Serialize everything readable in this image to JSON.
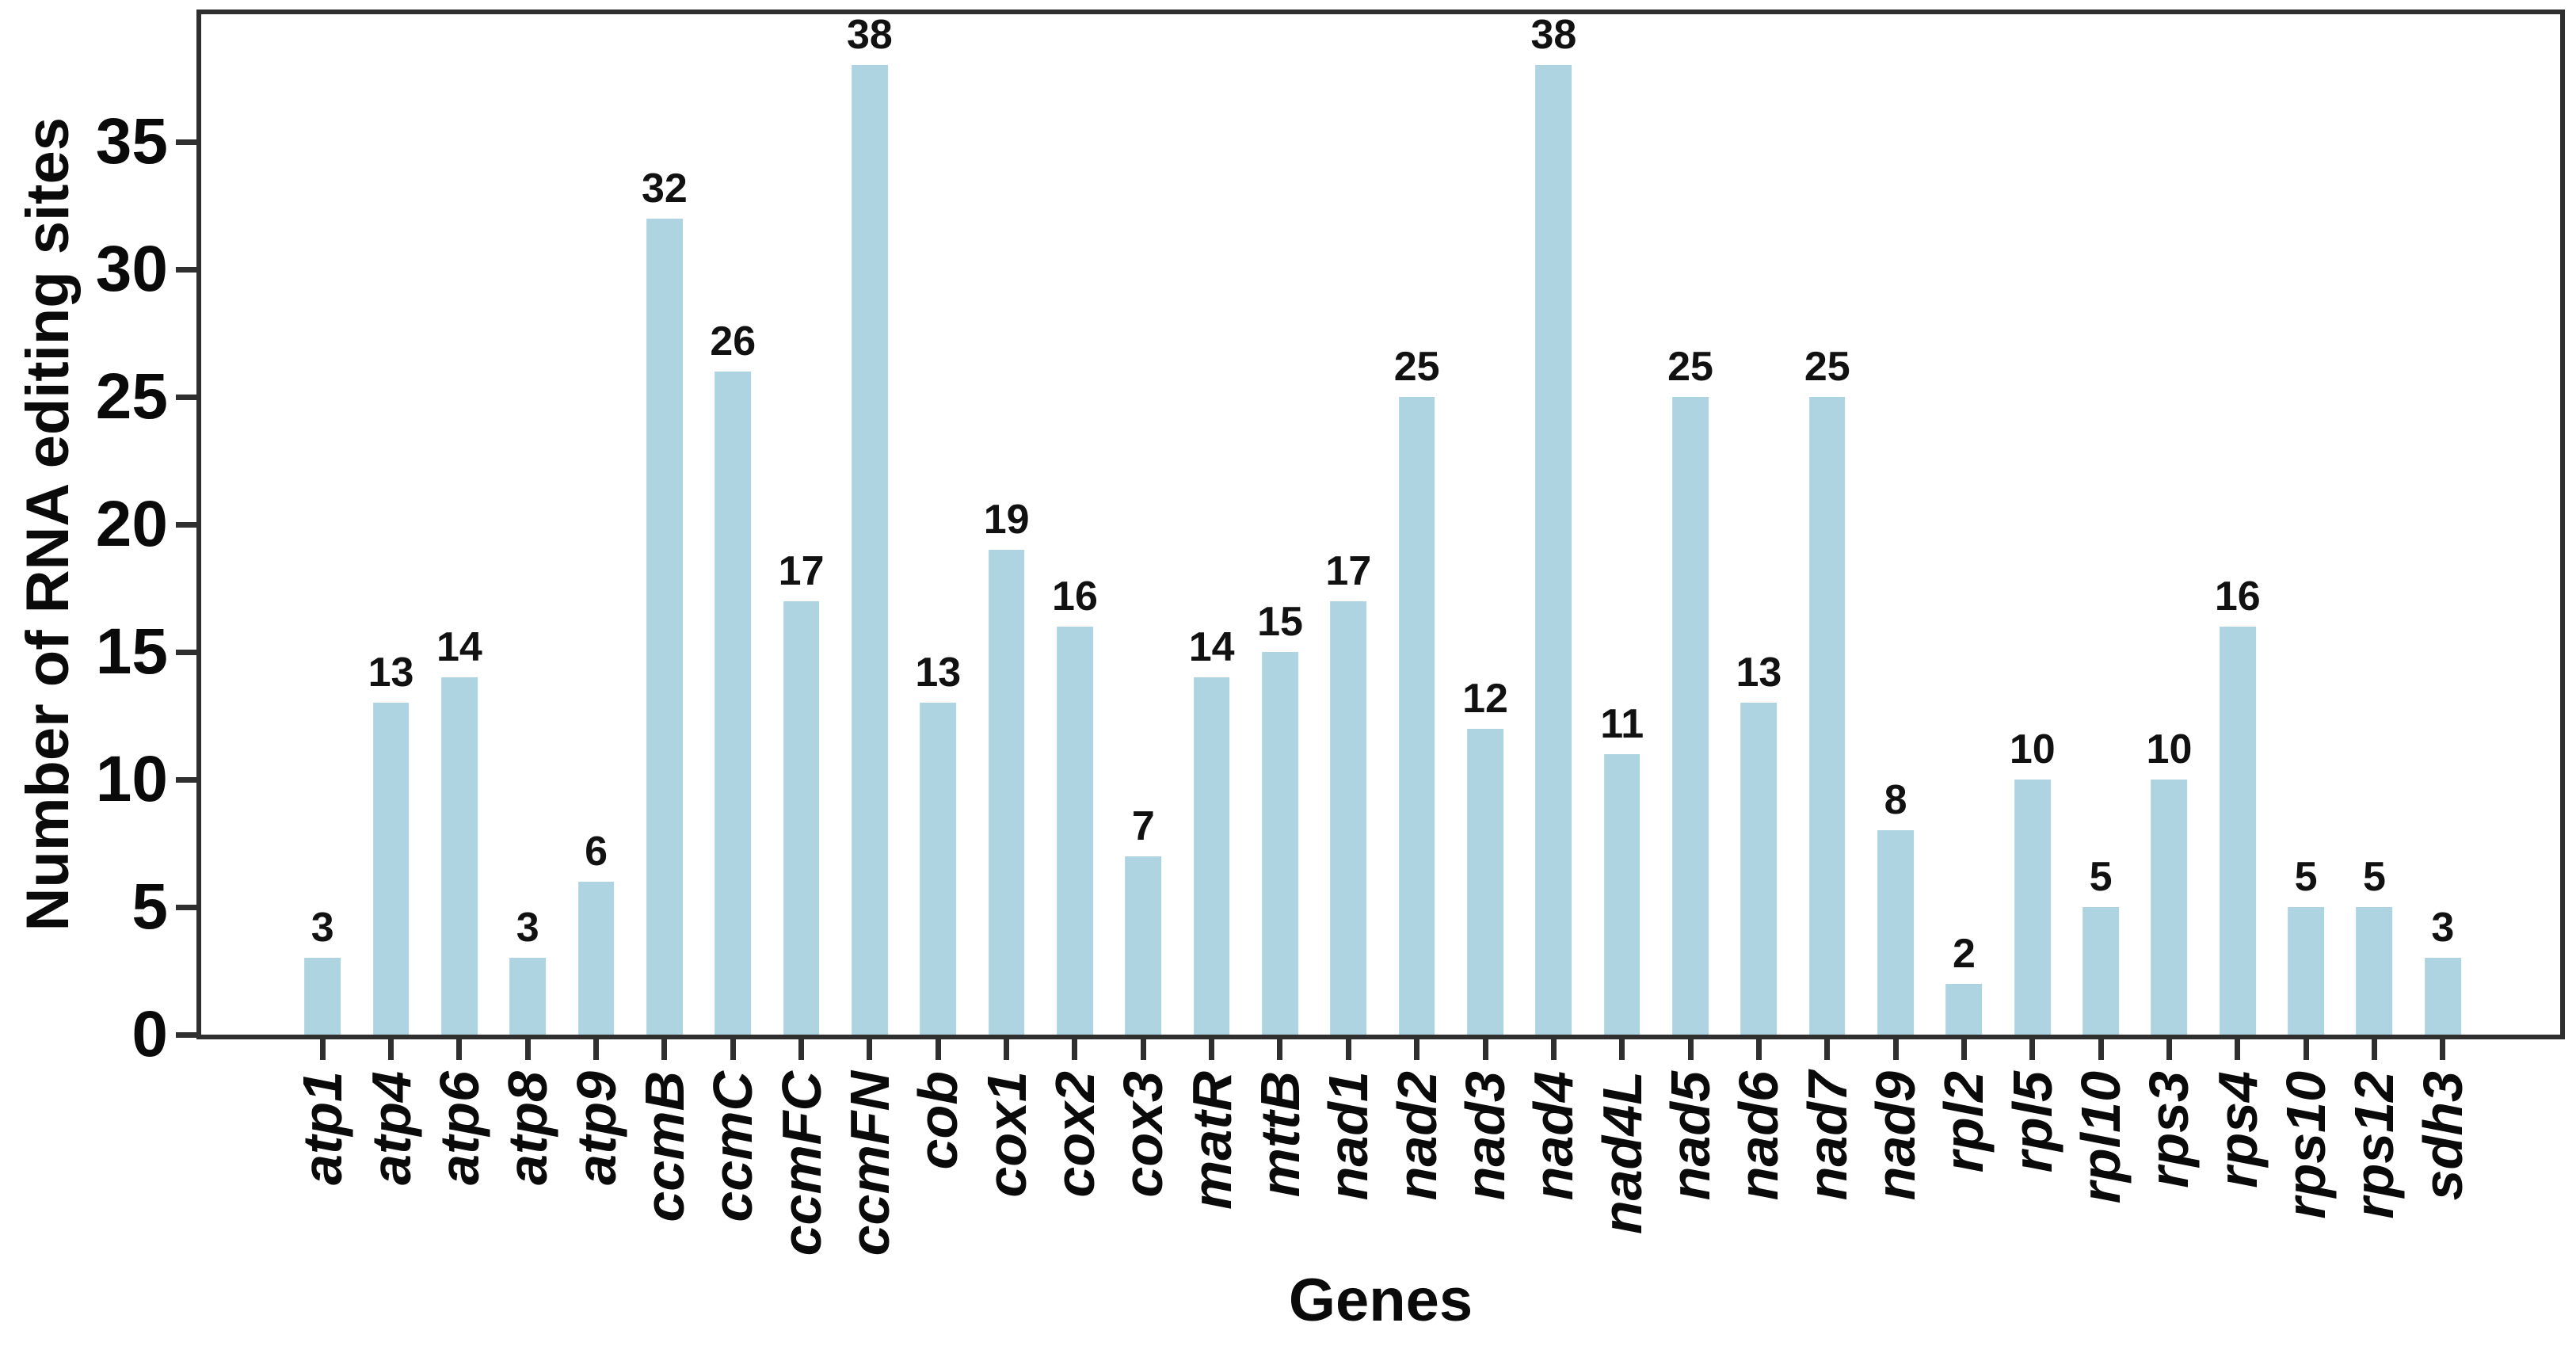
{
  "figure": {
    "background": "#ffffff"
  },
  "colors": {
    "bar_fill": "#aed4e2",
    "axis_line": "#2f2f2f",
    "text": "#0a0a0a"
  },
  "chart_data": {
    "type": "bar",
    "title": "",
    "xlabel": "Genes",
    "ylabel": "Number of RNA editing sites",
    "categories": [
      "atp1",
      "atp4",
      "atp6",
      "atp8",
      "atp9",
      "ccmB",
      "ccmC",
      "ccmFC",
      "ccmFN",
      "cob",
      "cox1",
      "cox2",
      "cox3",
      "matR",
      "mttB",
      "nad1",
      "nad2",
      "nad3",
      "nad4",
      "nad4L",
      "nad5",
      "nad6",
      "nad7",
      "nad9",
      "rpl2",
      "rpl5",
      "rpl10",
      "rps3",
      "rps4",
      "rps10",
      "rps12",
      "sdh3"
    ],
    "values": [
      3,
      13,
      14,
      3,
      6,
      32,
      26,
      17,
      38,
      13,
      19,
      16,
      7,
      14,
      15,
      17,
      25,
      12,
      38,
      11,
      25,
      13,
      25,
      8,
      2,
      10,
      5,
      10,
      16,
      5,
      5,
      3
    ],
    "value_labels_shown": true,
    "ylim": [
      0,
      40
    ],
    "yticks": [
      0,
      5,
      10,
      15,
      20,
      25,
      30,
      35
    ],
    "grid": false,
    "legend": null,
    "bar_orientation": "vertical",
    "x_tick_label_rotation_deg": 90
  }
}
